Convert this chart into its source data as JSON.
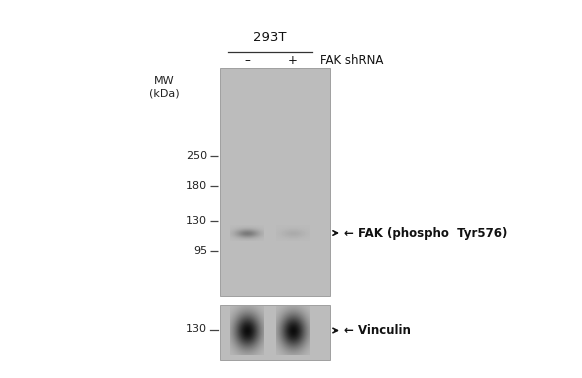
{
  "bg_color": "#ffffff",
  "gel_bg": "#b5b5b5",
  "title_293T": "293T",
  "label_minus": "–",
  "label_plus": "+",
  "label_shRNA": "FAK shRNA",
  "label_MW": "MW\n(kDa)",
  "mw_labels_upper": [
    250,
    180,
    130,
    95
  ],
  "mw_label_lower": 130,
  "band1_label": "← FAK (phospho  Tyr576)",
  "band2_label": "← Vinculin",
  "font_size_labels": 8.5,
  "font_size_mw": 8.0,
  "font_size_title": 9.5,
  "gel_facecolor": "#bcbcbc",
  "band_fak_color": "#909080",
  "band_vinculin_color": "#1a1a1a",
  "tick_color": "#444444",
  "text_color": "#222222"
}
